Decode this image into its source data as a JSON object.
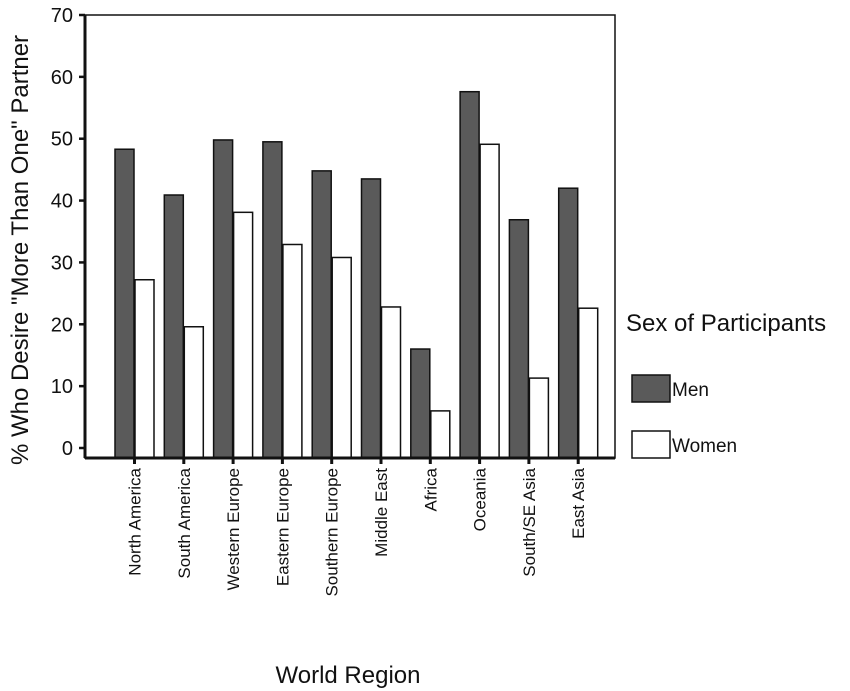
{
  "chart_data": {
    "type": "bar",
    "title": "",
    "xlabel": "World Region",
    "ylabel": "% Who Desire \"More Than One\" Partner",
    "ylim": [
      0,
      70
    ],
    "yticks": [
      0,
      10,
      20,
      30,
      40,
      50,
      60,
      70
    ],
    "categories": [
      "North America",
      "South America",
      "Western Europe",
      "Eastern Europe",
      "Southern Europe",
      "Middle East",
      "Africa",
      "Oceania",
      "South/SE Asia",
      "East Asia"
    ],
    "legend_title": "Sex of Participants",
    "legend_position": "right",
    "grid": false,
    "series": [
      {
        "name": "Men",
        "color": "#5a5a5a",
        "values": [
          48.3,
          40.9,
          49.8,
          49.5,
          44.8,
          43.5,
          16.0,
          57.6,
          36.9,
          42.0
        ]
      },
      {
        "name": "Women",
        "color": "#ffffff",
        "values": [
          27.2,
          19.6,
          38.1,
          32.9,
          30.8,
          22.8,
          6.0,
          49.1,
          11.3,
          22.6
        ]
      }
    ]
  }
}
